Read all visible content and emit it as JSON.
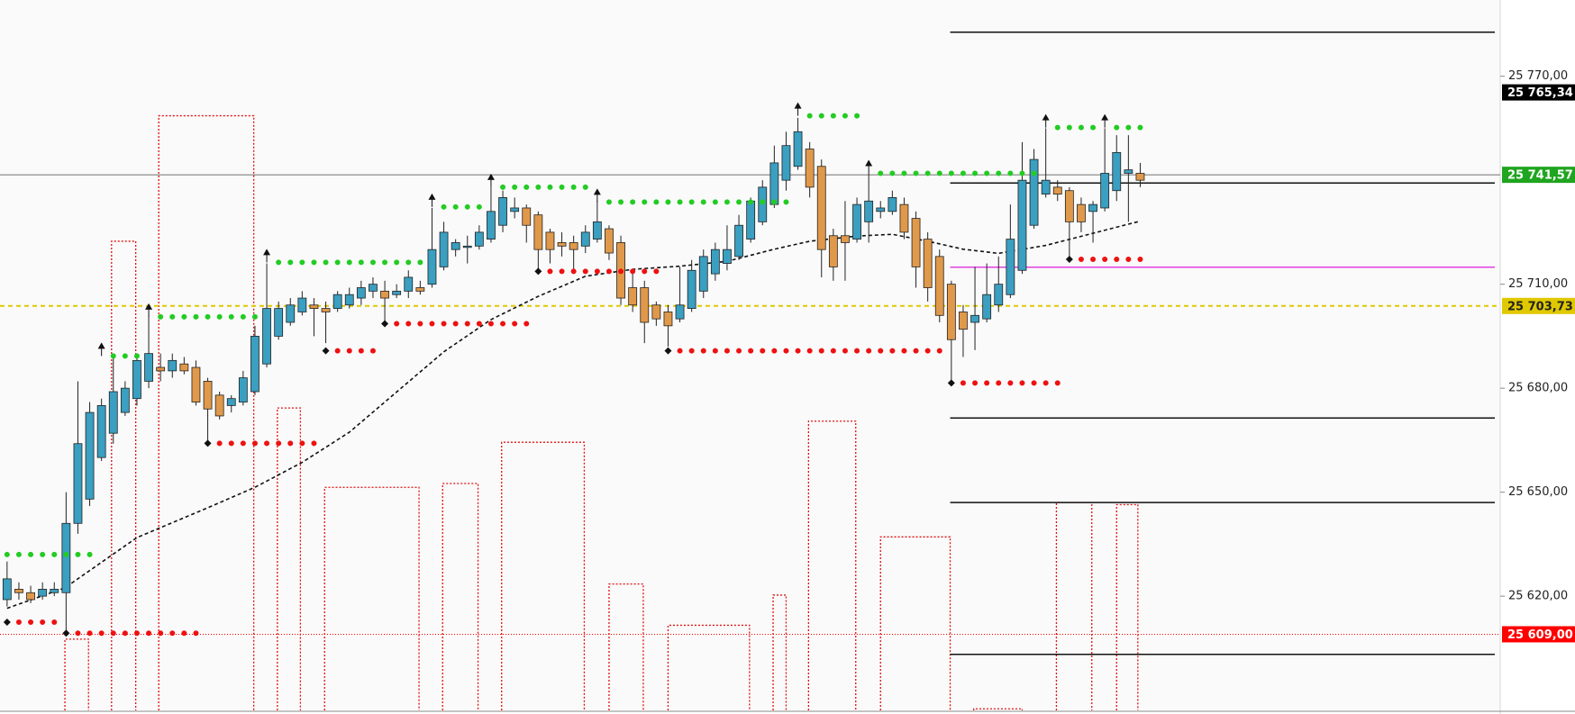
{
  "chart_data": {
    "type": "candlestick",
    "up_color": "#3a9fc0",
    "down_color": "#e0994a",
    "ylim": [
      25586,
      25792
    ],
    "xlim": [
      -0.6,
      126.5
    ],
    "yticks": [
      {
        "value": 25770,
        "label": "25 770,00"
      },
      {
        "value": 25710,
        "label": "25 710,00"
      },
      {
        "value": 25680,
        "label": "25 680,00"
      },
      {
        "value": 25650,
        "label": "25 650,00"
      },
      {
        "value": 25620,
        "label": "25 620,00"
      }
    ],
    "ohlc": [
      [
        25619,
        25630,
        25617,
        25625
      ],
      [
        25622,
        25624,
        25619,
        25621
      ],
      [
        25621,
        25623,
        25618,
        25619
      ],
      [
        25620,
        25624,
        25619,
        25622
      ],
      [
        25621,
        25624,
        25620,
        25622
      ],
      [
        25621,
        25650,
        25609,
        25641
      ],
      [
        25641,
        25682,
        25638,
        25664
      ],
      [
        25648,
        25676,
        25646,
        25673
      ],
      [
        25660,
        25677,
        25659,
        25675
      ],
      [
        25667,
        25690,
        25664,
        25679
      ],
      [
        25673,
        25682,
        25672,
        25680
      ],
      [
        25677,
        25690,
        25675,
        25688
      ],
      [
        25682,
        25701,
        25680,
        25690
      ],
      [
        25686,
        25690,
        25682,
        25685
      ],
      [
        25685,
        25690,
        25683,
        25688
      ],
      [
        25687,
        25689,
        25684,
        25685
      ],
      [
        25686,
        25688,
        25675,
        25676
      ],
      [
        25682,
        25683,
        25664,
        25674
      ],
      [
        25678,
        25679,
        25671,
        25672
      ],
      [
        25675,
        25678,
        25673,
        25677
      ],
      [
        25676,
        25685,
        25675,
        25683
      ],
      [
        25679,
        25698,
        25678,
        25695
      ],
      [
        25687,
        25716,
        25686,
        25703
      ],
      [
        25695,
        25705,
        25694,
        25703
      ],
      [
        25699,
        25706,
        25698,
        25704
      ],
      [
        25702,
        25708,
        25701,
        25706
      ],
      [
        25704,
        25706,
        25695,
        25703
      ],
      [
        25703,
        25705,
        25693,
        25702
      ],
      [
        25703,
        25708,
        25702,
        25707
      ],
      [
        25704,
        25709,
        25703,
        25707
      ],
      [
        25706,
        25711,
        25704,
        25709
      ],
      [
        25708,
        25712,
        25706,
        25710
      ],
      [
        25708,
        25711,
        25699,
        25706
      ],
      [
        25707,
        25710,
        25706,
        25708
      ],
      [
        25708,
        25714,
        25706,
        25712
      ],
      [
        25709,
        25711,
        25707,
        25708
      ],
      [
        25710,
        25732,
        25709,
        25720
      ],
      [
        25715,
        25728,
        25714,
        25725
      ],
      [
        25720,
        25723,
        25718,
        25722
      ],
      [
        25721,
        25724,
        25716,
        25721
      ],
      [
        25721,
        25727,
        25720,
        25725
      ],
      [
        25723,
        25738,
        25722,
        25731
      ],
      [
        25727,
        25737,
        25725,
        25735
      ],
      [
        25731,
        25735,
        25729,
        25732
      ],
      [
        25732,
        25733,
        25722,
        25727
      ],
      [
        25730,
        25731,
        25714,
        25720
      ],
      [
        25725,
        25726,
        25716,
        25720
      ],
      [
        25722,
        25725,
        25718,
        25721
      ],
      [
        25722,
        25724,
        25714,
        25720
      ],
      [
        25721,
        25727,
        25719,
        25725
      ],
      [
        25723,
        25734,
        25722,
        25728
      ],
      [
        25726,
        25727,
        25717,
        25719
      ],
      [
        25722,
        25724,
        25704,
        25706
      ],
      [
        25709,
        25714,
        25702,
        25704
      ],
      [
        25709,
        25711,
        25693,
        25699
      ],
      [
        25704,
        25705,
        25698,
        25700
      ],
      [
        25702,
        25704,
        25692,
        25698
      ],
      [
        25700,
        25715,
        25699,
        25704
      ],
      [
        25703,
        25717,
        25702,
        25714
      ],
      [
        25708,
        25720,
        25706,
        25718
      ],
      [
        25713,
        25722,
        25711,
        25720
      ],
      [
        25716,
        25727,
        25714,
        25720
      ],
      [
        25718,
        25730,
        25717,
        25727
      ],
      [
        25723,
        25735,
        25722,
        25734
      ],
      [
        25728,
        25740,
        25727,
        25738
      ],
      [
        25733,
        25750,
        25732,
        25745
      ],
      [
        25740,
        25754,
        25737,
        25750
      ],
      [
        25744,
        25758,
        25743,
        25754
      ],
      [
        25749,
        25751,
        25735,
        25738
      ],
      [
        25744,
        25746,
        25712,
        25720
      ],
      [
        25724,
        25726,
        25711,
        25715
      ],
      [
        25724,
        25734,
        25711,
        25722
      ],
      [
        25723,
        25735,
        25722,
        25733
      ],
      [
        25728,
        25742,
        25722,
        25734
      ],
      [
        25731,
        25734,
        25729,
        25732
      ],
      [
        25731,
        25737,
        25730,
        25735
      ],
      [
        25733,
        25735,
        25723,
        25725
      ],
      [
        25729,
        25731,
        25709,
        25715
      ],
      [
        25723,
        25725,
        25705,
        25709
      ],
      [
        25718,
        25720,
        25699,
        25701
      ],
      [
        25710,
        25711,
        25682,
        25694
      ],
      [
        25702,
        25704,
        25689,
        25697
      ],
      [
        25699,
        25715,
        25691,
        25701
      ],
      [
        25700,
        25716,
        25699,
        25707
      ],
      [
        25704,
        25718,
        25702,
        25710
      ],
      [
        25707,
        25733,
        25706,
        25723
      ],
      [
        25714,
        25751,
        25713,
        25740
      ],
      [
        25727,
        25749,
        25726,
        25746
      ],
      [
        25736,
        25755,
        25735,
        25740
      ],
      [
        25738,
        25740,
        25734,
        25736
      ],
      [
        25737,
        25738,
        25717,
        25728
      ],
      [
        25733,
        25735,
        25725,
        25728
      ],
      [
        25731,
        25734,
        25722,
        25733
      ],
      [
        25732,
        25755,
        25731,
        25742
      ],
      [
        25737,
        25753,
        25734,
        25748
      ],
      [
        25742,
        25753,
        25728,
        25743
      ],
      [
        25742,
        25745,
        25738,
        25740
      ]
    ],
    "ma": {
      "x": [
        0,
        4.9,
        11,
        17,
        21,
        25,
        29,
        33,
        37,
        41,
        45,
        49,
        53,
        57,
        61,
        65,
        68,
        72,
        75,
        78,
        81,
        84,
        88,
        92,
        96
      ],
      "values": [
        25616.5,
        25622.4,
        25636.9,
        25645.5,
        25651.4,
        25658.6,
        25667.3,
        25678.9,
        25690.5,
        25699.8,
        25706.5,
        25712.3,
        25714.3,
        25715.2,
        25716.6,
        25720.1,
        25722.4,
        25723.9,
        25724.4,
        25722.4,
        25720.1,
        25718.9,
        25721.2,
        25724.7,
        25728.2
      ],
      "color": "#111111"
    },
    "resistance": {
      "color": "#22cc22",
      "levels": [
        {
          "from": 0,
          "to": 7,
          "price": 25632
        },
        {
          "from": 9,
          "to": 11,
          "price": 25689.3
        },
        {
          "from": 13,
          "to": 21,
          "price": 25700.6
        },
        {
          "from": 23,
          "to": 35,
          "price": 25716.3
        },
        {
          "from": 37,
          "to": 40,
          "price": 25732.3
        },
        {
          "from": 42,
          "to": 49,
          "price": 25738
        },
        {
          "from": 51,
          "to": 66,
          "price": 25733.7
        },
        {
          "from": 68,
          "to": 72,
          "price": 25758.6
        },
        {
          "from": 74,
          "to": 87,
          "price": 25742
        },
        {
          "from": 89,
          "to": 92,
          "price": 25755.2
        },
        {
          "from": 94,
          "to": 96,
          "price": 25755.2
        }
      ]
    },
    "support": {
      "color": "#ee1111",
      "levels": [
        {
          "from": 1,
          "to": 4,
          "price": 25612.5
        },
        {
          "from": 6,
          "to": 16,
          "price": 25609.3
        },
        {
          "from": 18,
          "to": 26,
          "price": 25664.1
        },
        {
          "from": 28,
          "to": 31,
          "price": 25690.8
        },
        {
          "from": 33,
          "to": 44,
          "price": 25698.6
        },
        {
          "from": 46,
          "to": 55,
          "price": 25713.7
        },
        {
          "from": 57,
          "to": 79,
          "price": 25690.8
        },
        {
          "from": 81,
          "to": 89,
          "price": 25681.5
        },
        {
          "from": 91,
          "to": 96,
          "price": 25717.2
        }
      ]
    },
    "zones": {
      "color": "#e01010",
      "items": [
        {
          "x": [
            4.9,
            6.9
          ],
          "top": 25607.6
        },
        {
          "x": [
            8.85,
            10.9
          ],
          "top": 25722.4
        },
        {
          "x": [
            12.85,
            20.9
          ],
          "top": 25758.6
        },
        {
          "x": [
            22.9,
            24.85
          ],
          "top": 25674.3
        },
        {
          "x": [
            26.9,
            34.9
          ],
          "top": 25651.4
        },
        {
          "x": [
            36.9,
            39.9
          ],
          "top": 25652.5
        },
        {
          "x": [
            41.9,
            48.9
          ],
          "top": 25664.4
        },
        {
          "x": [
            51,
            53.9
          ],
          "top": 25623.5
        },
        {
          "x": [
            56,
            62.9
          ],
          "top": 25611.6
        },
        {
          "x": [
            64.9,
            66
          ],
          "top": 25620.3
        },
        {
          "x": [
            67.9,
            71.9
          ],
          "top": 25670.5
        },
        {
          "x": [
            74,
            79.9
          ],
          "top": 25637.1
        },
        {
          "x": [
            81.9,
            86
          ],
          "top": 25587.5
        },
        {
          "x": [
            88.9,
            91.9
          ],
          "top": 25647
        },
        {
          "x": [
            94,
            95.8
          ],
          "top": 25646.4
        }
      ]
    },
    "levels": [
      {
        "price": 25782.7,
        "color": "#111111",
        "from": 79.9
      },
      {
        "price": 25739.2,
        "color": "#111111",
        "from": 79.9
      },
      {
        "price": 25671.4,
        "color": "#111111",
        "from": 79.9
      },
      {
        "price": 25647,
        "color": "#111111",
        "from": 79.9
      },
      {
        "price": 25603.2,
        "color": "#111111",
        "from": 79.9
      },
      {
        "price": 25714.9,
        "color": "#e040e0",
        "from": 79.9
      }
    ],
    "price_labels": [
      {
        "value": 25765.34,
        "label": "25 765,34",
        "color": "#000000",
        "text_color": "#ffffff",
        "line": "none"
      },
      {
        "value": 25741.57,
        "label": "25 741,57",
        "color": "#1fa51f",
        "text_color": "#ffffff",
        "line": "solid"
      },
      {
        "value": 25703.73,
        "label": "25 703,73",
        "color": "#e0c800",
        "text_color": "#222222",
        "line": "dashed"
      },
      {
        "value": 25609,
        "label": "25 609,00",
        "color": "#ff0000",
        "text_color": "#ffffff",
        "line": "dotted"
      }
    ]
  }
}
